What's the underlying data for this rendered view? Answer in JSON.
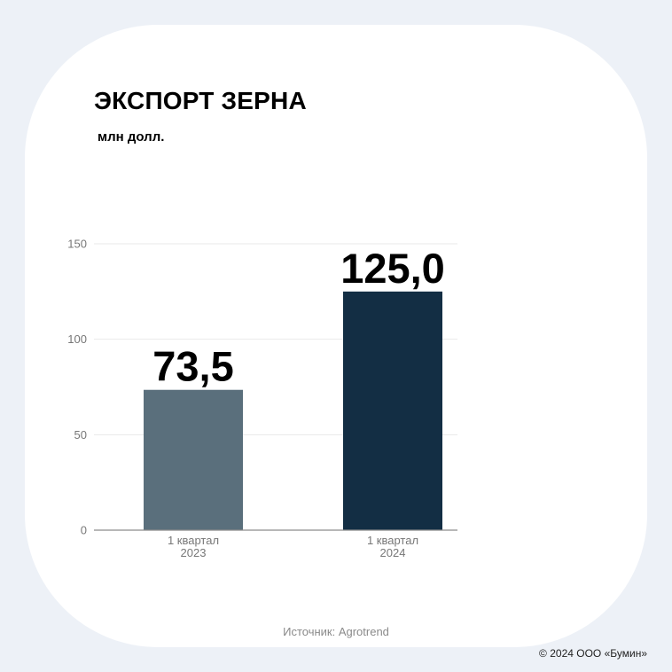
{
  "chart_data": {
    "type": "bar",
    "title": "ЭКСПОРТ ЗЕРНА",
    "subtitle": "млн долл.",
    "categories": [
      [
        "1 квартал",
        "2023"
      ],
      [
        "1 квартал",
        "2024"
      ]
    ],
    "values": [
      73.5,
      125.0
    ],
    "value_labels": [
      "73,5",
      "125,0"
    ],
    "colors": [
      "#5a6f7c",
      "#132e44"
    ],
    "ylim": [
      0,
      150
    ],
    "yticks": [
      0,
      50,
      100,
      150
    ],
    "grid": true,
    "xlabel": "",
    "ylabel": ""
  },
  "footer": {
    "source": "Источник: Agrotrend",
    "copyright": "© 2024 ООО «Бумин»"
  }
}
